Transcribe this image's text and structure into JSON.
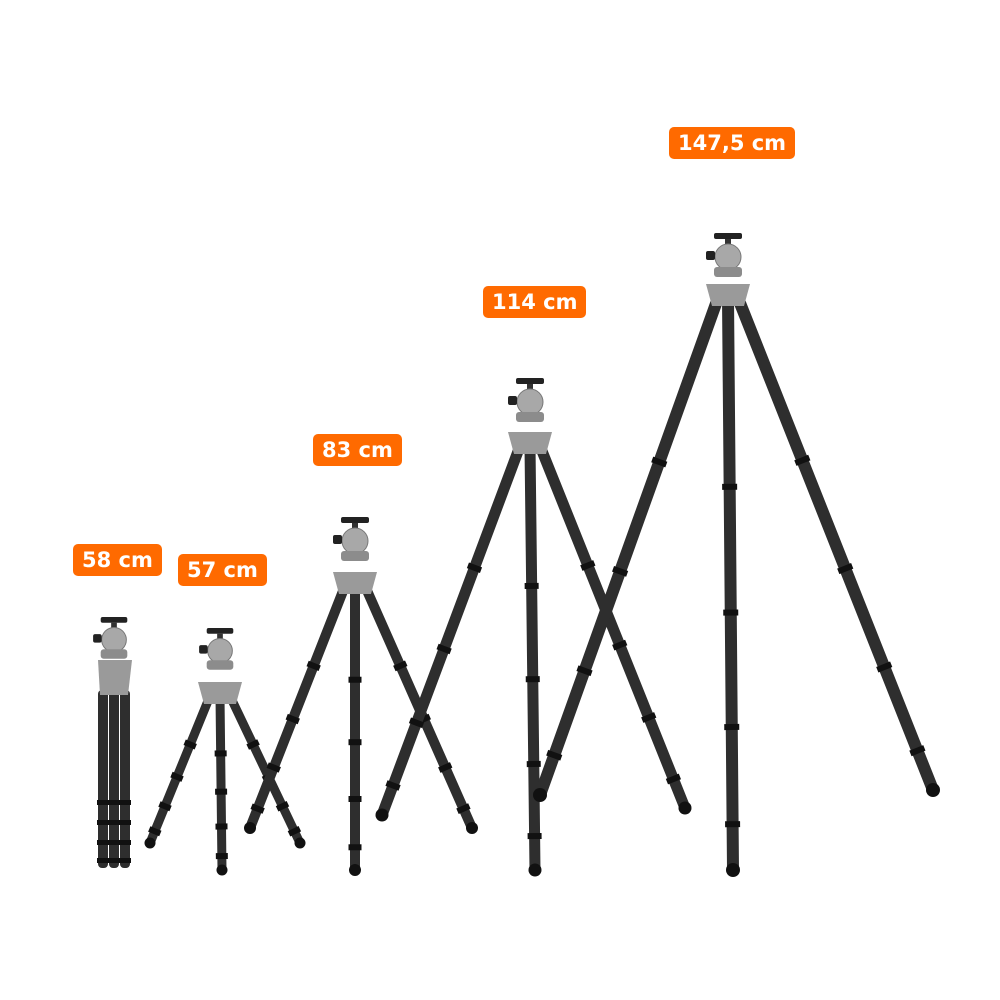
{
  "colors": {
    "label_bg": "#ff6a00",
    "label_text": "#ffffff",
    "leg": "#2e2e2e",
    "head": "#a8a8a8"
  },
  "tripods": [
    {
      "label": "58 cm",
      "state": "folded"
    },
    {
      "label": "57 cm",
      "state": "extended"
    },
    {
      "label": "83 cm",
      "state": "extended"
    },
    {
      "label": "114 cm",
      "state": "extended"
    },
    {
      "label": "147,5 cm",
      "state": "extended"
    }
  ]
}
